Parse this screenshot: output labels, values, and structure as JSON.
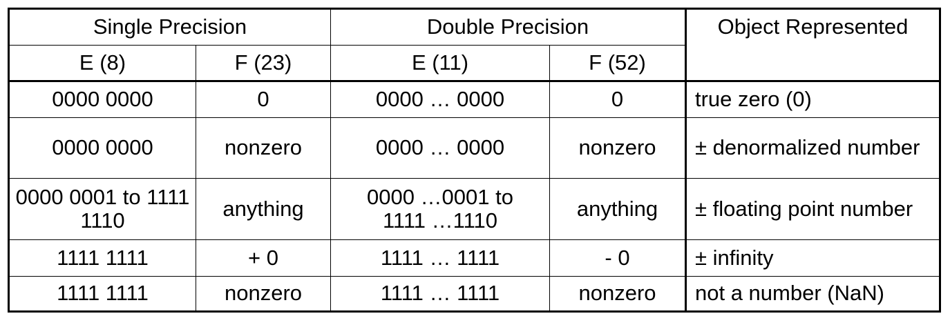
{
  "header": {
    "single_precision": "Single Precision",
    "double_precision": "Double Precision",
    "object_represented": "Object Represented",
    "sp_e": "E (8)",
    "sp_f": "F (23)",
    "dp_e": "E (11)",
    "dp_f": "F (52)"
  },
  "rows": [
    {
      "sp_e": "0000 0000",
      "sp_f": "0",
      "dp_e": "0000 … 0000",
      "dp_f": "0",
      "object": "true zero (0)"
    },
    {
      "sp_e": "0000 0000",
      "sp_f": "nonzero",
      "dp_e": "0000 … 0000",
      "dp_f": "nonzero",
      "object": "± denormalized number"
    },
    {
      "sp_e": "0000 0001  to 1111 1110",
      "sp_f": "anything",
      "dp_e": "0000 …0001  to 1111 …1110",
      "dp_f": "anything",
      "object": "± floating point number"
    },
    {
      "sp_e": "1111 1111",
      "sp_f": "+ 0",
      "dp_e": "1111 … 1111",
      "dp_f": "- 0",
      "object": "± infinity"
    },
    {
      "sp_e": "1111 1111",
      "sp_f": "nonzero",
      "dp_e": "1111 … 1111",
      "dp_f": "nonzero",
      "object": "not a number (NaN)"
    }
  ]
}
